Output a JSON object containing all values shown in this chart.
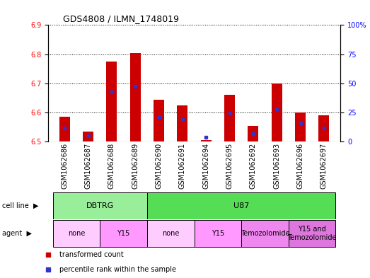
{
  "title": "GDS4808 / ILMN_1748019",
  "samples": [
    "GSM1062686",
    "GSM1062687",
    "GSM1062688",
    "GSM1062689",
    "GSM1062690",
    "GSM1062691",
    "GSM1062694",
    "GSM1062695",
    "GSM1062692",
    "GSM1062693",
    "GSM1062696",
    "GSM1062697"
  ],
  "bar_values": [
    6.585,
    6.535,
    6.775,
    6.805,
    6.645,
    6.625,
    6.505,
    6.66,
    6.555,
    6.7,
    6.6,
    6.59
  ],
  "percentile_values": [
    6.547,
    6.52,
    6.67,
    6.69,
    6.585,
    6.575,
    6.516,
    6.597,
    6.527,
    6.612,
    6.565,
    6.547
  ],
  "ylim_left": [
    6.5,
    6.9
  ],
  "ylim_right": [
    0,
    100
  ],
  "yticks_left": [
    6.5,
    6.6,
    6.7,
    6.8,
    6.9
  ],
  "yticks_right": [
    0,
    25,
    50,
    75,
    100
  ],
  "ytick_labels_right": [
    "0",
    "25",
    "50",
    "75",
    "100%"
  ],
  "bar_color": "#cc0000",
  "blue_color": "#3333cc",
  "bar_base": 6.5,
  "cell_line_groups": [
    {
      "label": "DBTRG",
      "start": 0,
      "end": 4,
      "color": "#99ee99"
    },
    {
      "label": "U87",
      "start": 4,
      "end": 12,
      "color": "#55dd55"
    }
  ],
  "agent_groups": [
    {
      "label": "none",
      "start": 0,
      "end": 2,
      "color": "#ffccff"
    },
    {
      "label": "Y15",
      "start": 2,
      "end": 4,
      "color": "#ff99ff"
    },
    {
      "label": "none",
      "start": 4,
      "end": 6,
      "color": "#ffccff"
    },
    {
      "label": "Y15",
      "start": 6,
      "end": 8,
      "color": "#ff99ff"
    },
    {
      "label": "Temozolomide",
      "start": 8,
      "end": 10,
      "color": "#ee88ee"
    },
    {
      "label": "Y15 and\nTemozolomide",
      "start": 10,
      "end": 12,
      "color": "#dd77dd"
    }
  ],
  "legend_red": "transformed count",
  "legend_blue": "percentile rank within the sample",
  "label_fontsize": 7,
  "tick_fontsize": 7,
  "bar_width": 0.45
}
